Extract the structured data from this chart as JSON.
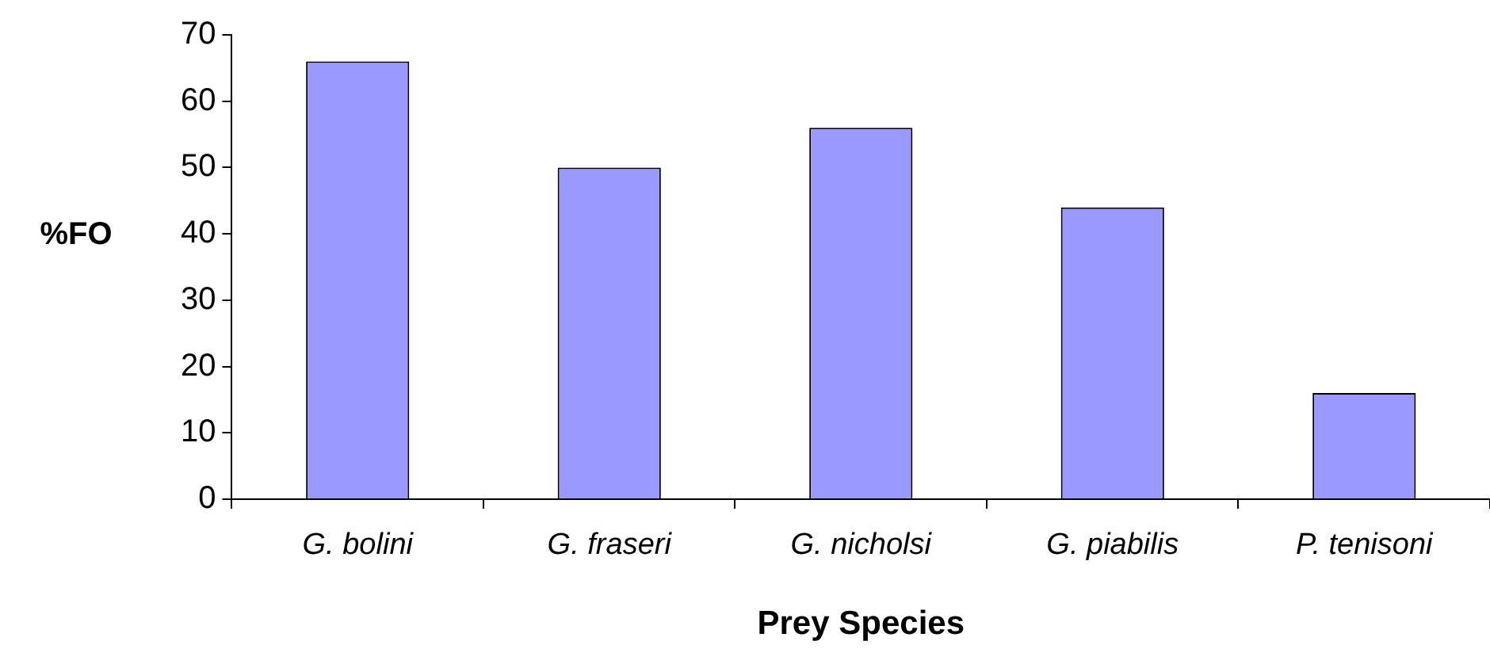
{
  "chart_data": {
    "type": "bar",
    "xlabel": "Prey Species",
    "ylabel": "%FO",
    "categories": [
      "G. bolini",
      "G. fraseri",
      "G. nicholsi",
      "G. piabilis",
      "P. tenisoni"
    ],
    "values": [
      66,
      50,
      56,
      44,
      16
    ],
    "color": "#9999ff",
    "ylim": [
      0,
      70
    ],
    "yticks": [
      0,
      10,
      20,
      30,
      40,
      50,
      60,
      70
    ],
    "grid": false,
    "legend": false
  }
}
